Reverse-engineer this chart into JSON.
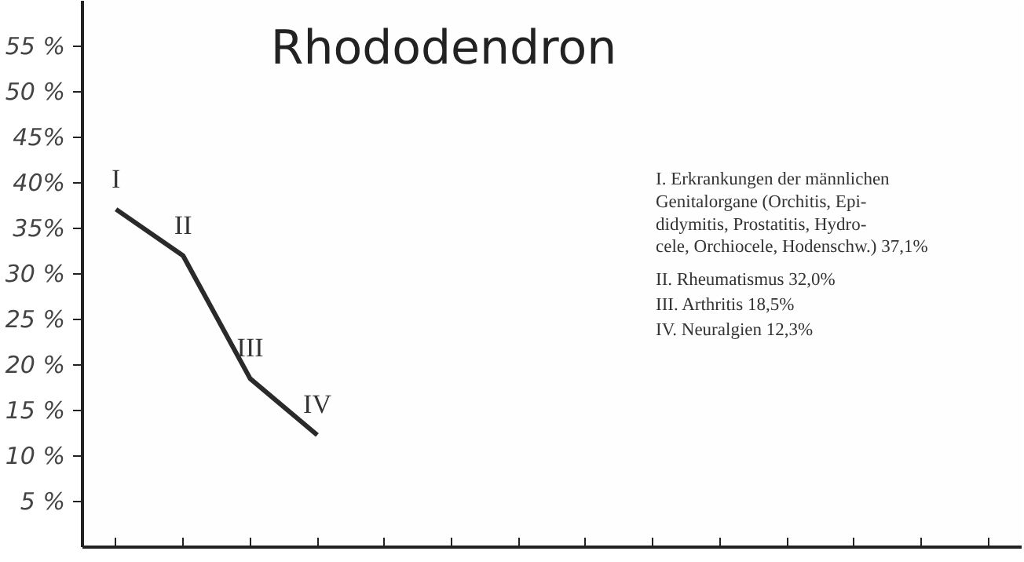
{
  "chart_data": {
    "type": "line",
    "title": "Rhododendron",
    "categories": [
      null,
      null,
      null,
      null,
      null,
      null,
      null,
      null,
      null,
      null,
      null,
      null,
      null,
      null
    ],
    "series": [
      {
        "color": "#2a2a2a",
        "values": [
          37.1,
          32.0,
          18.5,
          12.3,
          null,
          null,
          null,
          null,
          null,
          null,
          null,
          null,
          null,
          null
        ],
        "value_labels": [
          "I",
          "II",
          "III",
          "IV",
          null,
          null,
          null,
          null,
          null,
          null,
          null,
          null,
          null,
          null
        ]
      }
    ],
    "ylim": [
      0,
      60
    ],
    "yticks": [
      {
        "value": 5,
        "label": "5 %"
      },
      {
        "value": 10,
        "label": "10 %"
      },
      {
        "value": 15,
        "label": "15 %"
      },
      {
        "value": 20,
        "label": "20 %"
      },
      {
        "value": 25,
        "label": "25 %"
      },
      {
        "value": 30,
        "label": "30 %"
      },
      {
        "value": 35,
        "label": "35%"
      },
      {
        "value": 40,
        "label": "40%"
      },
      {
        "value": 45,
        "label": "45%"
      },
      {
        "value": 50,
        "label": "50 %"
      },
      {
        "value": 55,
        "label": "55 %"
      }
    ],
    "tick_labels": "y",
    "grid": false,
    "line_style": "solid",
    "annotations": [
      "I. Erkrankungen der männlichen\nGenitalorgane (Orchitis, Epi-\ndidymitis, Prostatitis, Hydro-\ncele, Orchiocele, Hodenschw.) 37,1%",
      "II. Rheumatismus 32,0%",
      "III. Arthritis 18,5%",
      "IV. Neuralgien 12,3%"
    ]
  }
}
